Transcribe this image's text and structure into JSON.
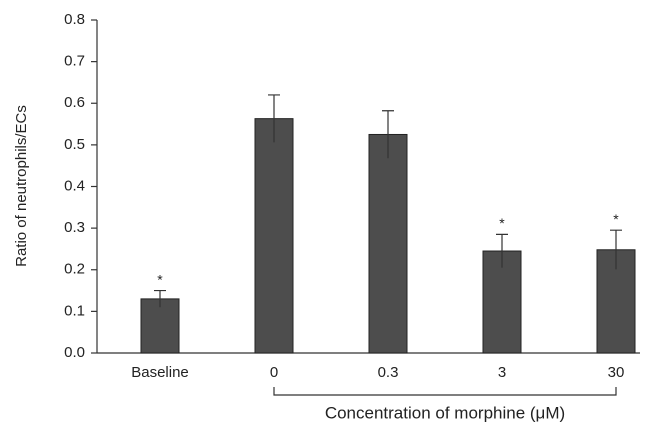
{
  "chart_data": {
    "type": "bar",
    "y_label": "Ratio of neutrophils/ECs",
    "x_group_label": "Concentration of morphine (μM)",
    "categories": [
      "Baseline",
      "0",
      "0.3",
      "3",
      "30"
    ],
    "values": [
      0.13,
      0.563,
      0.525,
      0.245,
      0.248
    ],
    "errors": [
      0.02,
      0.057,
      0.057,
      0.04,
      0.047
    ],
    "markers": [
      "*",
      null,
      null,
      "*",
      "*"
    ],
    "color": "#4d4d4d",
    "ylim": [
      0,
      0.8
    ],
    "yticks": [
      {
        "value": 0,
        "label": "0.0"
      },
      0.1,
      0.2,
      0.3,
      0.4,
      0.5,
      0.6,
      0.7,
      0.8
    ]
  }
}
